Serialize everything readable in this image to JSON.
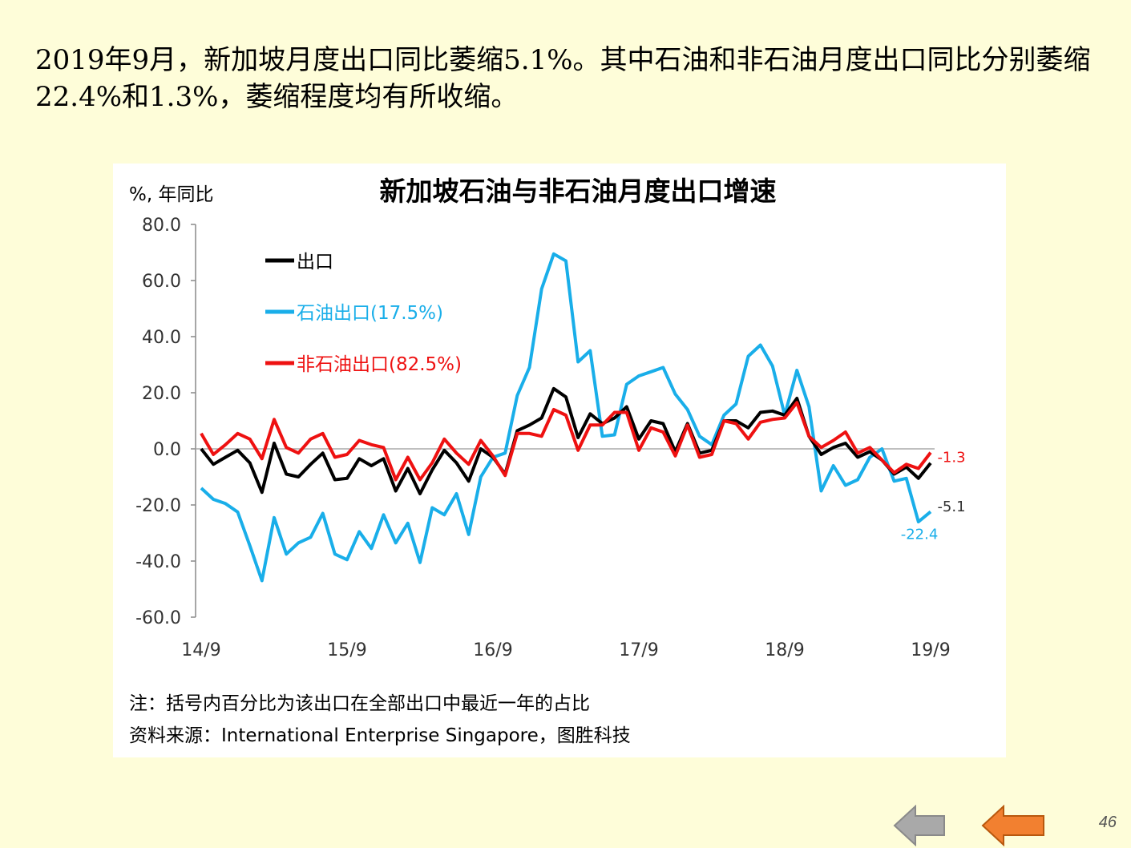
{
  "headline": "2019年9月，新加坡月度出口同比萎缩5.1%。其中石油和非石油月度出口同比分别萎缩22.4%和1.3%，萎缩程度均有所收缩。",
  "footnote": "注：括号内百分比为该出口在全部出口中最近一年的占比",
  "source": "资料来源：International Enterprise Singapore，图胜科技",
  "page_number": "46",
  "nav": {
    "prev_icon": "left-arrow-gray",
    "next_icon": "left-arrow-orange"
  },
  "colors": {
    "total": "#000000",
    "oil": "#19AEE9",
    "nonoil": "#EE1111",
    "background": "#FEFDD9"
  },
  "chart_data": {
    "type": "line",
    "title": "新加坡石油与非石油月度出口增速",
    "ylabel": "%, 年同比",
    "ylim": [
      -60,
      80
    ],
    "yticks": [
      "80.0",
      "60.0",
      "40.0",
      "20.0",
      "0.0",
      "-20.0",
      "-40.0",
      "-60.0"
    ],
    "xticks": [
      "14/9",
      "15/9",
      "16/9",
      "17/9",
      "18/9",
      "19/9"
    ],
    "x_start": "14/9",
    "x_end": "19/9",
    "legend_position": "top-left",
    "series": [
      {
        "name": "出口",
        "color": "#000000",
        "end_label": "-5.1",
        "values": [
          0,
          -5.5,
          -3,
          -0.5,
          -5,
          -15.5,
          2,
          -9,
          -10,
          -5.5,
          -1.5,
          -11,
          -10.5,
          -3.5,
          -6,
          -3.5,
          -15,
          -7,
          -16,
          -7.5,
          -0.5,
          -5,
          -11.5,
          0,
          -3,
          -9,
          6.5,
          8.5,
          11,
          21.5,
          18.5,
          4,
          12.5,
          9,
          11,
          15,
          3.5,
          10,
          9,
          -1,
          9,
          -1.5,
          -0.5,
          10,
          10,
          7.5,
          13,
          13.5,
          12,
          18,
          4.5,
          -2,
          0.5,
          2,
          -3,
          -1,
          -4,
          -9,
          -6.5,
          -10.5,
          -5.1
        ]
      },
      {
        "name": "石油出口(17.5%)",
        "color": "#19AEE9",
        "end_label": "-22.4",
        "values": [
          -14,
          -18,
          -19.5,
          -22.5,
          -34.5,
          -47,
          -24.5,
          -37.5,
          -33.5,
          -31.5,
          -23,
          -37.5,
          -39.5,
          -29.5,
          -35.5,
          -23.5,
          -33.5,
          -26.5,
          -40.5,
          -21,
          -23.5,
          -16,
          -30.5,
          -10,
          -3,
          -1.5,
          19,
          29,
          57,
          69.5,
          67,
          31,
          35,
          4.5,
          5,
          23,
          26,
          27.5,
          29,
          19.5,
          14,
          4.5,
          1.5,
          12,
          16,
          33,
          37,
          29.5,
          12,
          28,
          15,
          -15,
          -6,
          -13,
          -11,
          -3,
          0,
          -11.5,
          -10.5,
          -26,
          -22.4
        ]
      },
      {
        "name": "非石油出口(82.5%)",
        "color": "#EE1111",
        "end_label": "-1.3",
        "values": [
          5.5,
          -2,
          1.5,
          5.5,
          3.5,
          -3.5,
          10.5,
          0.5,
          -1.5,
          3.5,
          5.5,
          -3,
          -2,
          3,
          1.5,
          0.5,
          -11,
          -3,
          -11,
          -5,
          3.5,
          -1.5,
          -5.5,
          3,
          -2.5,
          -9.5,
          5.5,
          5.5,
          4.5,
          14,
          12,
          -0.5,
          8.5,
          8.5,
          13,
          13,
          -0.5,
          7.5,
          6,
          -2.5,
          8.5,
          -3,
          -2,
          10,
          9,
          3.5,
          9.5,
          10.5,
          11,
          16.5,
          4.5,
          0.5,
          3,
          6,
          -1.5,
          0.5,
          -4,
          -8.5,
          -5.5,
          -7,
          -1.3
        ]
      }
    ]
  }
}
